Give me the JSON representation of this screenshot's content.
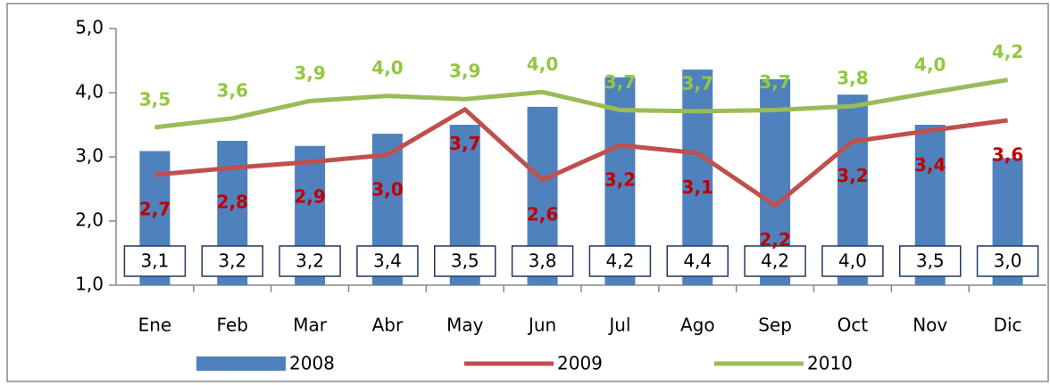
{
  "chart_data": {
    "type": "bar-line",
    "categories": [
      "Ene",
      "Feb",
      "Mar",
      "Abr",
      "May",
      "Jun",
      "Jul",
      "Ago",
      "Sep",
      "Oct",
      "Nov",
      "Dic"
    ],
    "series": [
      {
        "name": "2008",
        "type": "bar",
        "color": "#4f81bd",
        "values": [
          3.09,
          3.25,
          3.17,
          3.36,
          3.5,
          3.78,
          4.24,
          4.36,
          4.21,
          3.97,
          3.5,
          2.98
        ],
        "value_labels": [
          "3,1",
          "3,2",
          "3,2",
          "3,4",
          "3,5",
          "3,8",
          "4,2",
          "4,4",
          "4,2",
          "4,0",
          "3,5",
          "3,0"
        ]
      },
      {
        "name": "2009",
        "type": "line",
        "color": "#c0504d",
        "label_color": "#c00000",
        "values": [
          2.72,
          2.83,
          2.92,
          3.03,
          3.74,
          2.64,
          3.18,
          3.06,
          2.24,
          3.24,
          3.41,
          3.57
        ],
        "value_labels": [
          "2,7",
          "2,8",
          "2,9",
          "3,0",
          "3,7",
          "2,6",
          "3,2",
          "3,1",
          "2,2",
          "3,2",
          "3,4",
          "3,6"
        ]
      },
      {
        "name": "2010",
        "type": "line",
        "color": "#9bbb59",
        "label_color": "#92c83e",
        "values": [
          3.46,
          3.6,
          3.87,
          3.95,
          3.9,
          4.01,
          3.73,
          3.71,
          3.73,
          3.79,
          4.0,
          4.2
        ],
        "value_labels": [
          "3,5",
          "3,6",
          "3,9",
          "4,0",
          "3,9",
          "4,0",
          "3,7",
          "3,7",
          "3,7",
          "3,8",
          "4,0",
          "4,2"
        ]
      }
    ],
    "ylim": [
      1,
      5
    ],
    "yticks": [
      {
        "value": 1,
        "label": "1,0"
      },
      {
        "value": 2,
        "label": "2,0"
      },
      {
        "value": 3,
        "label": "3,0"
      },
      {
        "value": 4,
        "label": "4,0"
      },
      {
        "value": 5,
        "label": "5,0"
      }
    ],
    "legend": "bottom"
  }
}
